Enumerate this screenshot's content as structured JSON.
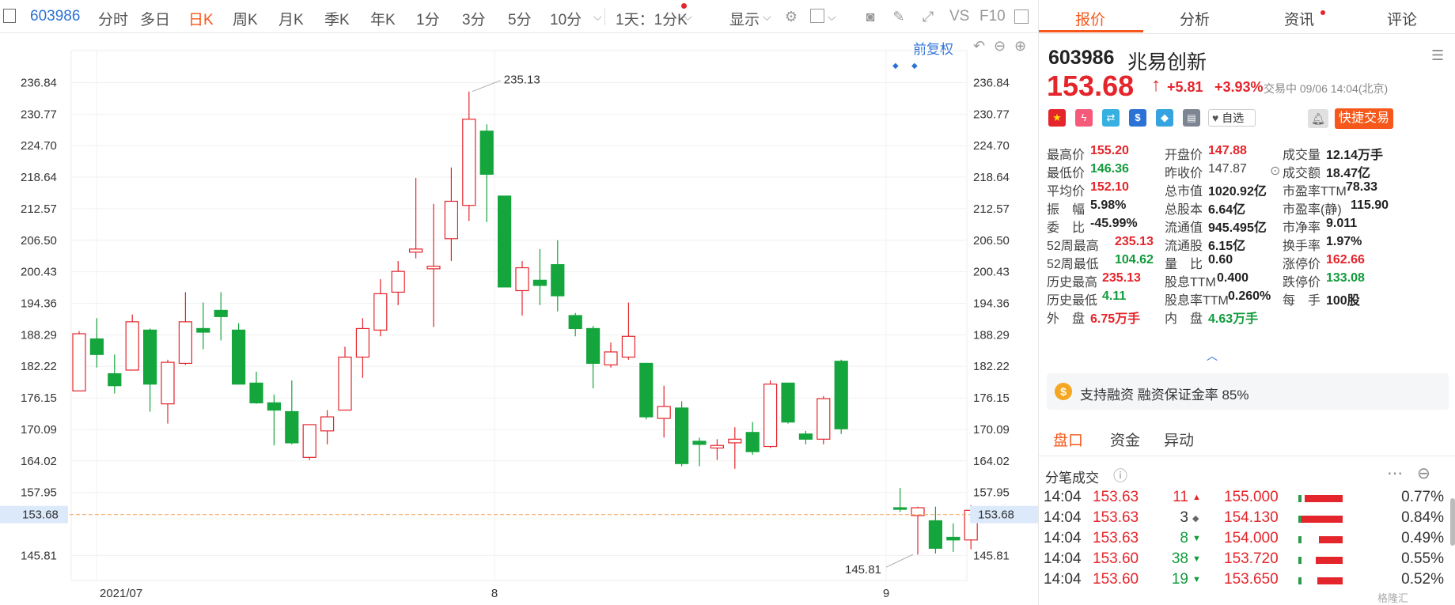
{
  "toolbar": {
    "code": "603986",
    "items": [
      "分时",
      "多日",
      "日K",
      "周K",
      "月K",
      "季K",
      "年K",
      "1分",
      "3分",
      "5分",
      "10分"
    ],
    "active": "日K",
    "period_select": "1天：1分K",
    "display": "显示",
    "vs": "VS",
    "f10": "F10"
  },
  "chart": {
    "adjust": "前复权",
    "x_labels": [
      "2021/07",
      "8",
      "9"
    ],
    "high_label": "235.13",
    "low_label": "145.81",
    "current_price": "153.68",
    "up_color": "#e4252b",
    "down_color": "#14a53c"
  },
  "chart_data": {
    "type": "candlestick",
    "y_ticks": [
      236.84,
      230.77,
      224.7,
      218.64,
      212.57,
      206.5,
      200.43,
      194.36,
      188.29,
      182.22,
      176.15,
      170.09,
      164.02,
      157.95,
      145.81
    ],
    "ylim": [
      141,
      243
    ],
    "reference_line": 153.68,
    "annotations": [
      {
        "label": "235.13",
        "value": 235.13
      },
      {
        "label": "145.81",
        "value": 145.81
      }
    ],
    "candles": [
      {
        "o": 177.5,
        "c": 188.5,
        "h": 189.0,
        "l": 177.5
      },
      {
        "o": 187.5,
        "c": 184.5,
        "h": 191.5,
        "l": 182.0
      },
      {
        "o": 180.8,
        "c": 178.5,
        "h": 184.5,
        "l": 177.0
      },
      {
        "o": 181.5,
        "c": 190.8,
        "h": 192.2,
        "l": 181.5
      },
      {
        "o": 189.2,
        "c": 178.8,
        "h": 189.5,
        "l": 173.5
      },
      {
        "o": 175.0,
        "c": 183.0,
        "h": 183.5,
        "l": 171.2
      },
      {
        "o": 182.8,
        "c": 190.8,
        "h": 196.5,
        "l": 182.5
      },
      {
        "o": 189.5,
        "c": 188.8,
        "h": 194.5,
        "l": 185.5
      },
      {
        "o": 193.0,
        "c": 191.8,
        "h": 196.5,
        "l": 187.2
      },
      {
        "o": 189.2,
        "c": 178.8,
        "h": 190.5,
        "l": 178.8
      },
      {
        "o": 179.0,
        "c": 175.2,
        "h": 181.2,
        "l": 175.0
      },
      {
        "o": 175.2,
        "c": 173.8,
        "h": 176.8,
        "l": 167.0
      },
      {
        "o": 173.5,
        "c": 167.5,
        "h": 179.5,
        "l": 167.2
      },
      {
        "o": 164.7,
        "c": 171.0,
        "h": 171.0,
        "l": 164.2
      },
      {
        "o": 169.8,
        "c": 172.5,
        "h": 173.8,
        "l": 167.2
      },
      {
        "o": 173.8,
        "c": 184.0,
        "h": 186.0,
        "l": 173.8
      },
      {
        "o": 184.0,
        "c": 189.5,
        "h": 191.5,
        "l": 180.0
      },
      {
        "o": 189.2,
        "c": 196.2,
        "h": 199.0,
        "l": 188.0
      },
      {
        "o": 196.5,
        "c": 200.5,
        "h": 202.5,
        "l": 194.0
      },
      {
        "o": 204.2,
        "c": 204.8,
        "h": 218.5,
        "l": 203.0
      },
      {
        "o": 201.0,
        "c": 201.5,
        "h": 213.5,
        "l": 189.8
      },
      {
        "o": 206.8,
        "c": 214.0,
        "h": 220.5,
        "l": 202.5
      },
      {
        "o": 213.2,
        "c": 229.8,
        "h": 235.13,
        "l": 210.2
      },
      {
        "o": 227.5,
        "c": 219.2,
        "h": 228.8,
        "l": 210.0
      },
      {
        "o": 215.0,
        "c": 197.5,
        "h": 215.0,
        "l": 197.5
      },
      {
        "o": 196.8,
        "c": 201.2,
        "h": 202.5,
        "l": 192.0
      },
      {
        "o": 198.8,
        "c": 197.8,
        "h": 204.8,
        "l": 194.0
      },
      {
        "o": 201.8,
        "c": 195.8,
        "h": 206.5,
        "l": 192.8
      },
      {
        "o": 192.0,
        "c": 189.5,
        "h": 192.5,
        "l": 188.0
      },
      {
        "o": 189.5,
        "c": 182.8,
        "h": 190.0,
        "l": 178.0
      },
      {
        "o": 182.5,
        "c": 185.0,
        "h": 186.8,
        "l": 182.0
      },
      {
        "o": 184.0,
        "c": 188.0,
        "h": 194.5,
        "l": 183.5
      },
      {
        "o": 182.8,
        "c": 172.5,
        "h": 182.8,
        "l": 172.0
      },
      {
        "o": 172.2,
        "c": 174.5,
        "h": 178.5,
        "l": 168.5
      },
      {
        "o": 174.2,
        "c": 163.5,
        "h": 175.5,
        "l": 163.0
      },
      {
        "o": 167.8,
        "c": 167.2,
        "h": 168.5,
        "l": 163.0
      },
      {
        "o": 166.5,
        "c": 167.0,
        "h": 168.2,
        "l": 164.2
      },
      {
        "o": 167.5,
        "c": 168.2,
        "h": 170.5,
        "l": 162.5
      },
      {
        "o": 169.5,
        "c": 165.8,
        "h": 171.5,
        "l": 165.2
      },
      {
        "o": 166.8,
        "c": 178.8,
        "h": 179.5,
        "l": 166.5
      },
      {
        "o": 179.0,
        "c": 171.5,
        "h": 179.0,
        "l": 171.2
      },
      {
        "o": 169.2,
        "c": 168.2,
        "h": 169.8,
        "l": 167.2
      },
      {
        "o": 168.2,
        "c": 176.0,
        "h": 176.5,
        "l": 167.2
      },
      {
        "o": 183.2,
        "c": 170.2,
        "h": 183.5,
        "l": 169.2
      },
      {
        "o": 155.0,
        "c": 154.8,
        "h": 158.8,
        "l": 154.2
      },
      {
        "o": 153.5,
        "c": 155.0,
        "h": 155.2,
        "l": 146.0
      },
      {
        "o": 152.5,
        "c": 147.2,
        "h": 155.2,
        "l": 146.2
      },
      {
        "o": 149.3,
        "c": 148.8,
        "h": 152.0,
        "l": 146.5
      },
      {
        "o": 148.8,
        "c": 154.5,
        "h": 155.5,
        "l": 147.0
      }
    ]
  },
  "panel": {
    "tabs": [
      "报价",
      "分析",
      "资讯",
      "评论"
    ],
    "code": "603986",
    "name": "兆易创新",
    "price": "153.68",
    "change": "+5.81",
    "pct": "+3.93%",
    "status": "交易中 09/06 14:04(北京)",
    "watch": "自选",
    "quick_trade": "快捷交易",
    "stats": [
      [
        {
          "k": "最高价",
          "v": "155.20",
          "c": "r"
        },
        {
          "k": "开盘价",
          "v": "147.88",
          "c": "r"
        },
        {
          "k": "成交量",
          "v": "12.14万手",
          "c": "b"
        }
      ],
      [
        {
          "k": "最低价",
          "v": "146.36",
          "c": "g"
        },
        {
          "k": "昨收价",
          "v": "147.87",
          "c": "k"
        },
        {
          "k": "成交额",
          "v": "18.47亿",
          "c": "b"
        }
      ],
      [
        {
          "k": "平均价",
          "v": "152.10",
          "c": "r"
        },
        {
          "k": "总市值",
          "v": "1020.92亿",
          "c": "b"
        },
        {
          "k": "市盈率TTM",
          "v": "78.33",
          "c": "b"
        }
      ],
      [
        {
          "k": "振　幅",
          "v": "5.98%",
          "c": "b"
        },
        {
          "k": "总股本",
          "v": "6.64亿",
          "c": "b"
        },
        {
          "k": "市盈率(静)",
          "v": "115.90",
          "c": "b"
        }
      ],
      [
        {
          "k": "委　比",
          "v": "-45.99%",
          "c": "b"
        },
        {
          "k": "流通值",
          "v": "945.495亿",
          "c": "b"
        },
        {
          "k": "市净率",
          "v": "9.011",
          "c": "b"
        }
      ],
      [
        {
          "k": "52周最高",
          "v": "235.13",
          "c": "r"
        },
        {
          "k": "流通股",
          "v": "6.15亿",
          "c": "b"
        },
        {
          "k": "换手率",
          "v": "1.97%",
          "c": "b"
        }
      ],
      [
        {
          "k": "52周最低",
          "v": "104.62",
          "c": "g"
        },
        {
          "k": "量　比",
          "v": "0.60",
          "c": "b"
        },
        {
          "k": "涨停价",
          "v": "162.66",
          "c": "r"
        }
      ],
      [
        {
          "k": "历史最高",
          "v": "235.13",
          "c": "r"
        },
        {
          "k": "股息TTM",
          "v": "0.400",
          "c": "b"
        },
        {
          "k": "跌停价",
          "v": "133.08",
          "c": "g"
        }
      ],
      [
        {
          "k": "历史最低",
          "v": "4.11",
          "c": "g"
        },
        {
          "k": "股息率TTM",
          "v": "0.260%",
          "c": "b"
        },
        {
          "k": "每　手",
          "v": "100股",
          "c": "b"
        }
      ],
      [
        {
          "k": "外　盘",
          "v": "6.75万手",
          "c": "r"
        },
        {
          "k": "内　盘",
          "v": "4.63万手",
          "c": "g"
        },
        {
          "k": "",
          "v": "",
          "c": "b"
        }
      ]
    ],
    "margin": "支持融资 融资保证金率 85%",
    "subtabs": [
      "盘口",
      "资金",
      "异动"
    ],
    "trades_title": "分笔成交",
    "trades": [
      {
        "t": "14:04",
        "p": "153.63",
        "v": "11",
        "d": "up",
        "lp": "155.000",
        "pct": "0.77%",
        "w": 0.77
      },
      {
        "t": "14:04",
        "p": "153.63",
        "v": "3",
        "d": "flat",
        "lp": "154.130",
        "pct": "0.84%",
        "w": 0.84
      },
      {
        "t": "14:04",
        "p": "153.63",
        "v": "8",
        "d": "down",
        "lp": "154.000",
        "pct": "0.49%",
        "w": 0.49
      },
      {
        "t": "14:04",
        "p": "153.60",
        "v": "38",
        "d": "down",
        "lp": "153.720",
        "pct": "0.55%",
        "w": 0.55
      },
      {
        "t": "14:04",
        "p": "153.60",
        "v": "19",
        "d": "down",
        "lp": "153.650",
        "pct": "0.52%",
        "w": 0.52
      }
    ],
    "watermark": "格隆汇"
  }
}
